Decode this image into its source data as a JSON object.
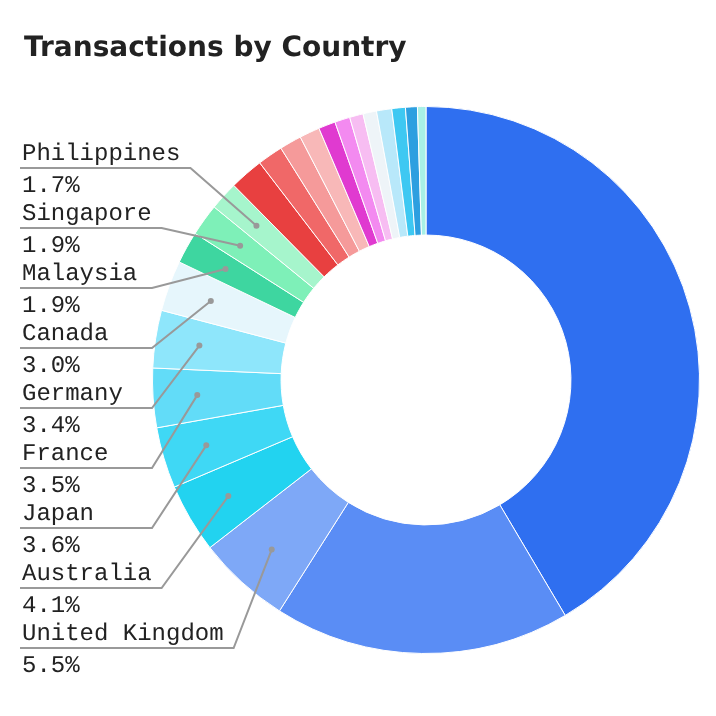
{
  "chart_data": {
    "type": "donut",
    "title": "Transactions by Country",
    "categories": [
      null,
      null,
      "United Kingdom",
      "Australia",
      "Japan",
      "France",
      "Germany",
      "Canada",
      "Malaysia",
      "Singapore",
      "Philippines",
      null,
      null,
      null,
      null,
      null,
      null,
      null,
      null,
      null,
      null,
      null,
      null
    ],
    "values": [
      41.5,
      17.5,
      5.5,
      4.1,
      3.6,
      3.5,
      3.4,
      3.0,
      1.9,
      1.9,
      1.7,
      2.0,
      1.5,
      1.3,
      1.2,
      1.0,
      0.9,
      0.8,
      0.8,
      0.9,
      0.8,
      0.7,
      0.5
    ],
    "value_labels": [
      null,
      null,
      "5.5%",
      "4.1%",
      "3.6%",
      "3.5%",
      "3.4%",
      "3.0%",
      "1.9%",
      "1.9%",
      "1.7%",
      null,
      null,
      null,
      null,
      null,
      null,
      null,
      null,
      null,
      null,
      null,
      null
    ],
    "colors": [
      "#2f6ff0",
      "#5a8df5",
      "#7ea8f7",
      "#22d3f0",
      "#3fd8f5",
      "#62dcf8",
      "#8ee6fb",
      "#e6f6fc",
      "#3ed6a0",
      "#7ef0b8",
      "#a6f5cc",
      "#e84040",
      "#f06868",
      "#f59a9a",
      "#f8b8b8",
      "#e03ad0",
      "#f38af0",
      "#f7bdf2",
      "#eef4f8",
      "#b8e8fa",
      "#3ec8f2",
      "#2d9fe0",
      "#a8f0e6"
    ],
    "legend": false
  }
}
